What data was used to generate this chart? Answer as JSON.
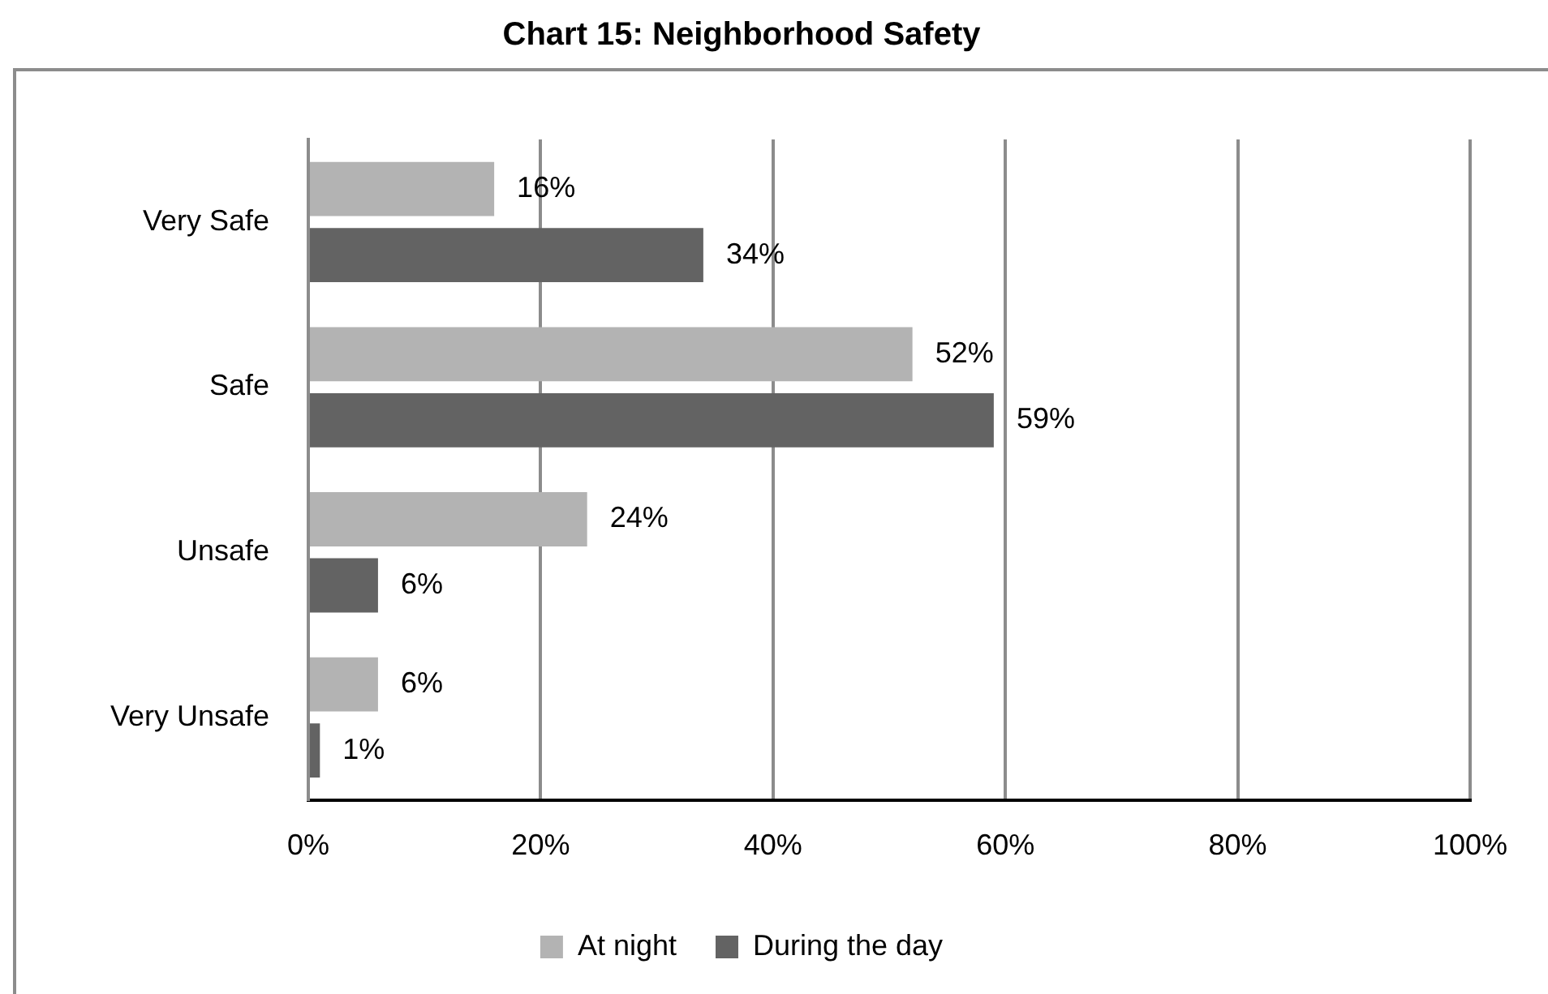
{
  "chart_data": {
    "type": "bar",
    "orientation": "horizontal",
    "title": "Chart 15: Neighborhood Safety",
    "categories": [
      "Very Safe",
      "Safe",
      "Unsafe",
      "Very Unsafe"
    ],
    "series": [
      {
        "name": "At night",
        "color": "#b3b3b3",
        "values": [
          16,
          52,
          24,
          6
        ],
        "value_labels": [
          "16%",
          "52%",
          "24%",
          "6%"
        ]
      },
      {
        "name": "During the day",
        "color": "#636363",
        "values": [
          34,
          59,
          6,
          1
        ],
        "value_labels": [
          "34%",
          "59%",
          "6%",
          "1%"
        ]
      }
    ],
    "xlim": [
      0,
      100
    ],
    "xticks": [
      {
        "value": 0,
        "label": "0%"
      },
      {
        "value": 20,
        "label": "20%"
      },
      {
        "value": 40,
        "label": "40%"
      },
      {
        "value": 60,
        "label": "60%"
      },
      {
        "value": 80,
        "label": "80%"
      },
      {
        "value": 100,
        "label": "100%"
      }
    ],
    "grid": "x",
    "legend": "bottom"
  }
}
